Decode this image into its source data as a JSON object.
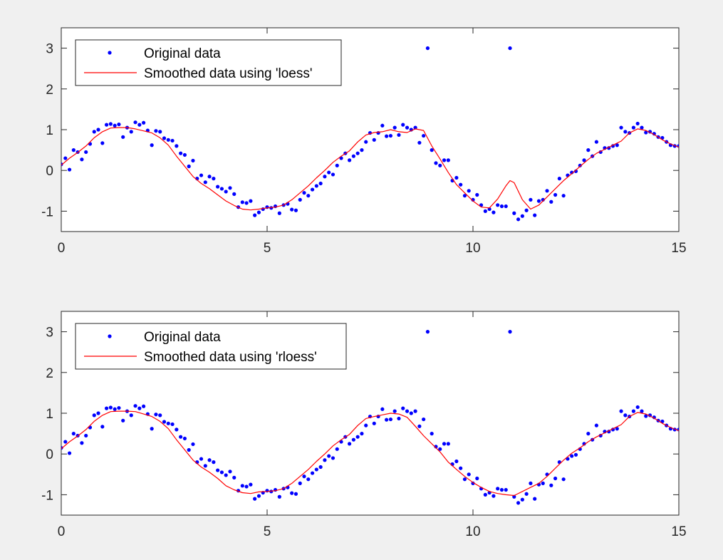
{
  "colors": {
    "background": "#f0f0f0",
    "axes": "#ffffff",
    "data_points": "#0000ff",
    "smooth_line": "#ff0000",
    "axis_color": "#262626"
  },
  "chart_data": [
    {
      "type": "scatter",
      "title": "",
      "xlabel": "",
      "ylabel": "",
      "xlim": [
        0,
        15
      ],
      "ylim": [
        -1.5,
        3.5
      ],
      "xticks": [
        0,
        5,
        10,
        15
      ],
      "yticks": [
        3,
        2,
        1,
        0,
        -1
      ],
      "grid": false,
      "legend_position": "top-left",
      "series": [
        {
          "name": "Original data",
          "kind": "points",
          "color": "#0000ff",
          "x": [
            0.0,
            0.1,
            0.2,
            0.3,
            0.4,
            0.5,
            0.6,
            0.7,
            0.8,
            0.9,
            1.0,
            1.1,
            1.2,
            1.3,
            1.4,
            1.5,
            1.6,
            1.7,
            1.8,
            1.9,
            2.0,
            2.1,
            2.2,
            2.3,
            2.4,
            2.5,
            2.6,
            2.7,
            2.8,
            2.9,
            3.0,
            3.1,
            3.2,
            3.3,
            3.4,
            3.5,
            3.6,
            3.7,
            3.8,
            3.9,
            4.0,
            4.1,
            4.2,
            4.3,
            4.4,
            4.5,
            4.6,
            4.7,
            4.8,
            4.9,
            5.0,
            5.1,
            5.2,
            5.3,
            5.4,
            5.5,
            5.6,
            5.7,
            5.8,
            5.9,
            6.0,
            6.1,
            6.2,
            6.3,
            6.4,
            6.5,
            6.6,
            6.7,
            6.8,
            6.9,
            7.0,
            7.1,
            7.2,
            7.3,
            7.4,
            7.5,
            7.6,
            7.7,
            7.8,
            7.9,
            8.0,
            8.1,
            8.2,
            8.3,
            8.4,
            8.5,
            8.6,
            8.7,
            8.8,
            8.9,
            9.0,
            9.1,
            9.2,
            9.3,
            9.4,
            9.5,
            9.6,
            9.7,
            9.8,
            9.9,
            10.0,
            10.1,
            10.2,
            10.3,
            10.4,
            10.5,
            10.6,
            10.7,
            10.8,
            10.9,
            11.0,
            11.1,
            11.2,
            11.3,
            11.4,
            11.5,
            11.6,
            11.7,
            11.8,
            11.9,
            12.0,
            12.1,
            12.2,
            12.3,
            12.4,
            12.5,
            12.6,
            12.7,
            12.8,
            12.9,
            13.0,
            13.1,
            13.2,
            13.3,
            13.4,
            13.5,
            13.6,
            13.7,
            13.8,
            13.9,
            14.0,
            14.1,
            14.2,
            14.3,
            14.4,
            14.5,
            14.6,
            14.7,
            14.8,
            14.9,
            15.0
          ],
          "y": [
            0.15,
            0.3,
            0.02,
            0.5,
            0.45,
            0.27,
            0.45,
            0.65,
            0.95,
            1.0,
            0.67,
            1.12,
            1.14,
            1.1,
            1.13,
            0.82,
            1.05,
            0.95,
            1.18,
            1.12,
            1.17,
            0.98,
            0.62,
            0.97,
            0.95,
            0.79,
            0.75,
            0.73,
            0.6,
            0.42,
            0.38,
            0.1,
            0.24,
            -0.2,
            -0.12,
            -0.29,
            -0.15,
            -0.2,
            -0.4,
            -0.45,
            -0.52,
            -0.43,
            -0.58,
            -0.9,
            -0.78,
            -0.8,
            -0.75,
            -1.1,
            -1.03,
            -0.95,
            -0.9,
            -0.92,
            -0.88,
            -1.05,
            -0.85,
            -0.82,
            -0.96,
            -0.98,
            -0.72,
            -0.55,
            -0.62,
            -0.47,
            -0.38,
            -0.32,
            -0.15,
            -0.05,
            -0.1,
            0.12,
            0.3,
            0.42,
            0.25,
            0.35,
            0.42,
            0.5,
            0.7,
            0.92,
            0.75,
            0.92,
            1.1,
            0.84,
            0.85,
            1.05,
            0.87,
            1.12,
            1.05,
            1.0,
            1.05,
            0.68,
            0.85,
            3.0,
            0.5,
            0.18,
            0.12,
            0.25,
            0.25,
            -0.25,
            -0.18,
            -0.35,
            -0.62,
            -0.5,
            -0.72,
            -0.6,
            -0.85,
            -1.0,
            -0.95,
            -1.03,
            -0.85,
            -0.88,
            -0.88,
            3.0,
            -1.05,
            -1.2,
            -1.12,
            -0.98,
            -0.72,
            -1.1,
            -0.75,
            -0.72,
            -0.5,
            -0.77,
            -0.6,
            -0.2,
            -0.62,
            -0.12,
            -0.05,
            -0.02,
            0.12,
            0.25,
            0.5,
            0.35,
            0.7,
            0.45,
            0.55,
            0.55,
            0.6,
            0.62,
            1.05,
            0.95,
            0.92,
            1.05,
            1.15,
            1.05,
            0.93,
            0.95,
            0.9,
            0.82,
            0.8,
            0.7,
            0.62,
            0.6,
            0.6
          ]
        },
        {
          "name": "Smoothed data using 'loess'",
          "kind": "line",
          "color": "#ff0000",
          "x": [
            0.0,
            0.2,
            0.4,
            0.6,
            0.8,
            1.0,
            1.2,
            1.4,
            1.6,
            1.8,
            2.0,
            2.2,
            2.4,
            2.6,
            2.8,
            3.0,
            3.2,
            3.4,
            3.6,
            3.8,
            4.0,
            4.2,
            4.4,
            4.6,
            4.8,
            5.0,
            5.2,
            5.4,
            5.6,
            5.8,
            6.0,
            6.2,
            6.4,
            6.6,
            6.8,
            7.0,
            7.2,
            7.4,
            7.6,
            7.8,
            8.0,
            8.2,
            8.4,
            8.6,
            8.8,
            9.0,
            9.2,
            9.4,
            9.6,
            9.8,
            10.0,
            10.2,
            10.4,
            10.6,
            10.8,
            10.9,
            11.0,
            11.2,
            11.4,
            11.6,
            11.8,
            12.0,
            12.2,
            12.4,
            12.6,
            12.8,
            13.0,
            13.2,
            13.4,
            13.6,
            13.8,
            14.0,
            14.2,
            14.4,
            14.6,
            14.8,
            15.0
          ],
          "y": [
            0.13,
            0.3,
            0.44,
            0.6,
            0.8,
            0.95,
            1.04,
            1.05,
            1.05,
            1.02,
            0.97,
            0.92,
            0.8,
            0.62,
            0.35,
            0.1,
            -0.15,
            -0.32,
            -0.45,
            -0.6,
            -0.75,
            -0.86,
            -0.95,
            -0.97,
            -0.95,
            -0.92,
            -0.9,
            -0.85,
            -0.72,
            -0.55,
            -0.38,
            -0.18,
            0.0,
            0.2,
            0.35,
            0.48,
            0.7,
            0.87,
            0.93,
            0.95,
            1.0,
            0.95,
            0.93,
            1.02,
            0.98,
            0.6,
            0.28,
            -0.05,
            -0.35,
            -0.55,
            -0.75,
            -0.9,
            -0.92,
            -0.7,
            -0.38,
            -0.25,
            -0.3,
            -0.72,
            -0.95,
            -0.85,
            -0.65,
            -0.45,
            -0.25,
            -0.08,
            0.1,
            0.27,
            0.42,
            0.52,
            0.62,
            0.72,
            0.92,
            1.02,
            0.98,
            0.88,
            0.75,
            0.65,
            0.57
          ]
        }
      ]
    },
    {
      "type": "scatter",
      "title": "",
      "xlabel": "",
      "ylabel": "",
      "xlim": [
        0,
        15
      ],
      "ylim": [
        -1.5,
        3.5
      ],
      "xticks": [
        0,
        5,
        10,
        15
      ],
      "yticks": [
        3,
        2,
        1,
        0,
        -1
      ],
      "grid": false,
      "legend_position": "top-left",
      "series": [
        {
          "name": "Original data",
          "kind": "points",
          "color": "#0000ff",
          "x": [
            0.0,
            0.1,
            0.2,
            0.3,
            0.4,
            0.5,
            0.6,
            0.7,
            0.8,
            0.9,
            1.0,
            1.1,
            1.2,
            1.3,
            1.4,
            1.5,
            1.6,
            1.7,
            1.8,
            1.9,
            2.0,
            2.1,
            2.2,
            2.3,
            2.4,
            2.5,
            2.6,
            2.7,
            2.8,
            2.9,
            3.0,
            3.1,
            3.2,
            3.3,
            3.4,
            3.5,
            3.6,
            3.7,
            3.8,
            3.9,
            4.0,
            4.1,
            4.2,
            4.3,
            4.4,
            4.5,
            4.6,
            4.7,
            4.8,
            4.9,
            5.0,
            5.1,
            5.2,
            5.3,
            5.4,
            5.5,
            5.6,
            5.7,
            5.8,
            5.9,
            6.0,
            6.1,
            6.2,
            6.3,
            6.4,
            6.5,
            6.6,
            6.7,
            6.8,
            6.9,
            7.0,
            7.1,
            7.2,
            7.3,
            7.4,
            7.5,
            7.6,
            7.7,
            7.8,
            7.9,
            8.0,
            8.1,
            8.2,
            8.3,
            8.4,
            8.5,
            8.6,
            8.7,
            8.8,
            8.9,
            9.0,
            9.1,
            9.2,
            9.3,
            9.4,
            9.5,
            9.6,
            9.7,
            9.8,
            9.9,
            10.0,
            10.1,
            10.2,
            10.3,
            10.4,
            10.5,
            10.6,
            10.7,
            10.8,
            10.9,
            11.0,
            11.1,
            11.2,
            11.3,
            11.4,
            11.5,
            11.6,
            11.7,
            11.8,
            11.9,
            12.0,
            12.1,
            12.2,
            12.3,
            12.4,
            12.5,
            12.6,
            12.7,
            12.8,
            12.9,
            13.0,
            13.1,
            13.2,
            13.3,
            13.4,
            13.5,
            13.6,
            13.7,
            13.8,
            13.9,
            14.0,
            14.1,
            14.2,
            14.3,
            14.4,
            14.5,
            14.6,
            14.7,
            14.8,
            14.9,
            15.0
          ],
          "y": [
            0.15,
            0.3,
            0.02,
            0.5,
            0.45,
            0.27,
            0.45,
            0.65,
            0.95,
            1.0,
            0.67,
            1.12,
            1.14,
            1.1,
            1.13,
            0.82,
            1.05,
            0.95,
            1.18,
            1.12,
            1.17,
            0.98,
            0.62,
            0.97,
            0.95,
            0.79,
            0.75,
            0.73,
            0.6,
            0.42,
            0.38,
            0.1,
            0.24,
            -0.2,
            -0.12,
            -0.29,
            -0.15,
            -0.2,
            -0.4,
            -0.45,
            -0.52,
            -0.43,
            -0.58,
            -0.9,
            -0.78,
            -0.8,
            -0.75,
            -1.1,
            -1.03,
            -0.95,
            -0.9,
            -0.92,
            -0.88,
            -1.05,
            -0.85,
            -0.82,
            -0.96,
            -0.98,
            -0.72,
            -0.55,
            -0.62,
            -0.47,
            -0.38,
            -0.32,
            -0.15,
            -0.05,
            -0.1,
            0.12,
            0.3,
            0.42,
            0.25,
            0.35,
            0.42,
            0.5,
            0.7,
            0.92,
            0.75,
            0.92,
            1.1,
            0.84,
            0.85,
            1.05,
            0.87,
            1.12,
            1.05,
            1.0,
            1.05,
            0.68,
            0.85,
            3.0,
            0.5,
            0.18,
            0.12,
            0.25,
            0.25,
            -0.25,
            -0.18,
            -0.35,
            -0.62,
            -0.5,
            -0.72,
            -0.6,
            -0.85,
            -1.0,
            -0.95,
            -1.03,
            -0.85,
            -0.88,
            -0.88,
            3.0,
            -1.05,
            -1.2,
            -1.12,
            -0.98,
            -0.72,
            -1.1,
            -0.75,
            -0.72,
            -0.5,
            -0.77,
            -0.6,
            -0.2,
            -0.62,
            -0.12,
            -0.05,
            -0.02,
            0.12,
            0.25,
            0.5,
            0.35,
            0.7,
            0.45,
            0.55,
            0.55,
            0.6,
            0.62,
            1.05,
            0.95,
            0.92,
            1.05,
            1.15,
            1.05,
            0.93,
            0.95,
            0.9,
            0.82,
            0.8,
            0.7,
            0.62,
            0.6,
            0.6
          ]
        },
        {
          "name": "Smoothed data using 'rloess'",
          "kind": "line",
          "color": "#ff0000",
          "x": [
            0.0,
            0.2,
            0.4,
            0.6,
            0.8,
            1.0,
            1.2,
            1.4,
            1.6,
            1.8,
            2.0,
            2.2,
            2.4,
            2.6,
            2.8,
            3.0,
            3.2,
            3.4,
            3.6,
            3.8,
            4.0,
            4.2,
            4.4,
            4.6,
            4.8,
            5.0,
            5.2,
            5.4,
            5.6,
            5.8,
            6.0,
            6.2,
            6.4,
            6.6,
            6.8,
            7.0,
            7.2,
            7.4,
            7.6,
            7.8,
            8.0,
            8.2,
            8.4,
            8.6,
            8.8,
            9.0,
            9.2,
            9.4,
            9.6,
            9.8,
            10.0,
            10.2,
            10.4,
            10.6,
            10.8,
            11.0,
            11.2,
            11.4,
            11.6,
            11.8,
            12.0,
            12.2,
            12.4,
            12.6,
            12.8,
            13.0,
            13.2,
            13.4,
            13.6,
            13.8,
            14.0,
            14.2,
            14.4,
            14.6,
            14.8,
            15.0
          ],
          "y": [
            0.13,
            0.3,
            0.44,
            0.6,
            0.8,
            0.95,
            1.04,
            1.05,
            1.05,
            1.04,
            0.98,
            0.92,
            0.8,
            0.62,
            0.35,
            0.1,
            -0.15,
            -0.32,
            -0.45,
            -0.6,
            -0.78,
            -0.88,
            -0.95,
            -0.97,
            -0.93,
            -0.92,
            -0.9,
            -0.85,
            -0.72,
            -0.55,
            -0.38,
            -0.18,
            0.0,
            0.2,
            0.35,
            0.48,
            0.7,
            0.87,
            0.92,
            0.96,
            1.0,
            0.98,
            0.9,
            0.68,
            0.45,
            0.25,
            0.05,
            -0.2,
            -0.38,
            -0.55,
            -0.7,
            -0.82,
            -0.92,
            -0.97,
            -1.0,
            -1.02,
            -0.92,
            -0.82,
            -0.72,
            -0.55,
            -0.35,
            -0.15,
            0.02,
            0.15,
            0.3,
            0.42,
            0.52,
            0.62,
            0.72,
            0.92,
            1.02,
            0.98,
            0.88,
            0.75,
            0.65,
            0.57
          ]
        }
      ]
    }
  ]
}
